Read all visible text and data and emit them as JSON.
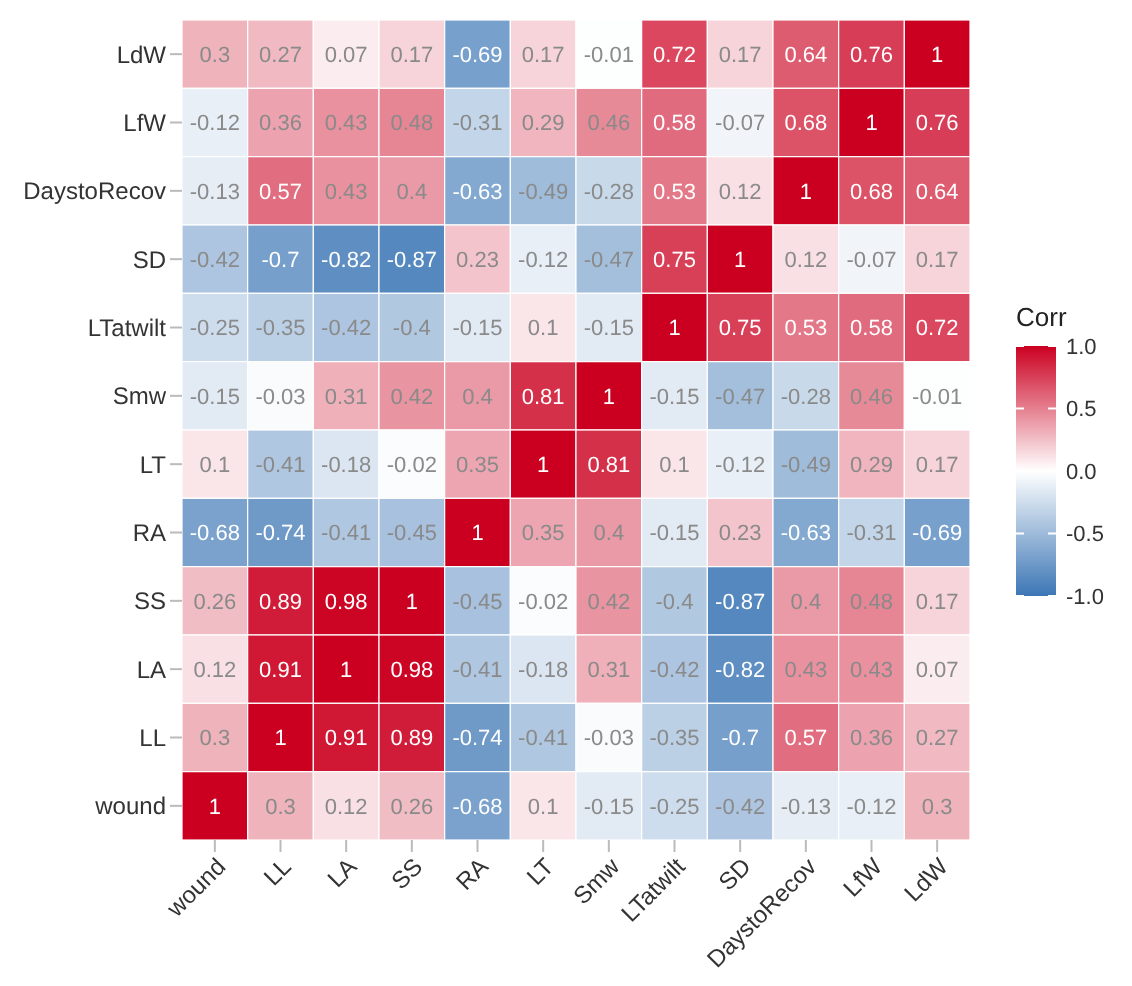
{
  "chart_data": {
    "type": "heatmap",
    "legend_title": "Corr",
    "categories": [
      "wound",
      "LL",
      "LA",
      "SS",
      "RA",
      "LT",
      "Smw",
      "LTatwilt",
      "SD",
      "DaystoRecov",
      "LfW",
      "LdW"
    ],
    "y_categories": [
      "LdW",
      "LfW",
      "DaystoRecov",
      "SD",
      "LTatwilt",
      "Smw",
      "LT",
      "RA",
      "SS",
      "LA",
      "LL",
      "wound"
    ],
    "cells": [
      [
        0.3,
        0.27,
        0.07,
        0.17,
        -0.69,
        0.17,
        -0.01,
        0.72,
        0.17,
        0.64,
        0.76,
        1
      ],
      [
        -0.12,
        0.36,
        0.43,
        0.48,
        -0.31,
        0.29,
        0.46,
        0.58,
        -0.07,
        0.68,
        1,
        0.76
      ],
      [
        -0.13,
        0.57,
        0.43,
        0.4,
        -0.63,
        -0.49,
        -0.28,
        0.53,
        0.12,
        1,
        0.68,
        0.64
      ],
      [
        -0.42,
        -0.7,
        -0.82,
        -0.87,
        0.23,
        -0.12,
        -0.47,
        0.75,
        1,
        0.12,
        -0.07,
        0.17
      ],
      [
        -0.25,
        -0.35,
        -0.42,
        -0.4,
        -0.15,
        0.1,
        -0.15,
        1,
        0.75,
        0.53,
        0.58,
        0.72
      ],
      [
        -0.15,
        -0.03,
        0.31,
        0.42,
        0.4,
        0.81,
        1,
        -0.15,
        -0.47,
        -0.28,
        0.46,
        -0.01
      ],
      [
        0.1,
        -0.41,
        -0.18,
        -0.02,
        0.35,
        1,
        0.81,
        0.1,
        -0.12,
        -0.49,
        0.29,
        0.17
      ],
      [
        -0.68,
        -0.74,
        -0.41,
        -0.45,
        1,
        0.35,
        0.4,
        -0.15,
        0.23,
        -0.63,
        -0.31,
        -0.69
      ],
      [
        0.26,
        0.89,
        0.98,
        1,
        -0.45,
        -0.02,
        0.42,
        -0.4,
        -0.87,
        0.4,
        0.48,
        0.17
      ],
      [
        0.12,
        0.91,
        1,
        0.98,
        -0.41,
        -0.18,
        0.31,
        -0.42,
        -0.82,
        0.43,
        0.43,
        0.07
      ],
      [
        0.3,
        1,
        0.91,
        0.89,
        -0.74,
        -0.41,
        -0.03,
        -0.35,
        -0.7,
        0.57,
        0.36,
        0.27
      ],
      [
        1,
        0.3,
        0.12,
        0.26,
        -0.68,
        0.1,
        -0.15,
        -0.25,
        -0.42,
        -0.13,
        -0.12,
        0.3
      ]
    ],
    "data_labels": true,
    "clim": [
      -1,
      1
    ],
    "cticks": [
      {
        "value": 1,
        "label": "1.0"
      },
      {
        "value": 0.5,
        "label": "0.5"
      },
      {
        "value": 0,
        "label": "0.0"
      },
      {
        "value": -0.5,
        "label": "-0.5"
      },
      {
        "value": -1,
        "label": "-1.0"
      }
    ]
  }
}
